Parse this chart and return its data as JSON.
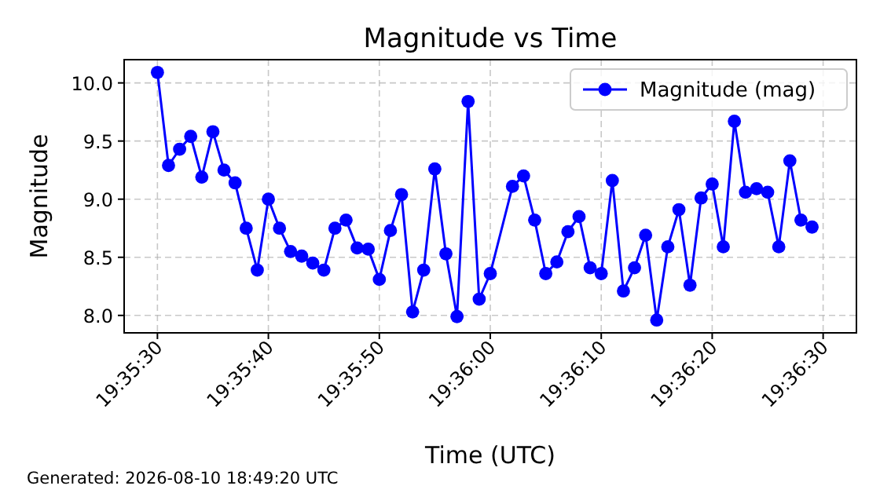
{
  "chart_data": {
    "type": "line",
    "title": "Magnitude vs Time",
    "xlabel": "Time (UTC)",
    "ylabel": "Magnitude",
    "annotations": [
      "Generated: 2026-08-10 18:49:20 UTC"
    ],
    "x": [
      "2026-08-10T19:35:30",
      "2026-08-10T19:35:31",
      "2026-08-10T19:35:32",
      "2026-08-10T19:35:33",
      "2026-08-10T19:35:34",
      "2026-08-10T19:35:35",
      "2026-08-10T19:35:36",
      "2026-08-10T19:35:37",
      "2026-08-10T19:35:38",
      "2026-08-10T19:35:39",
      "2026-08-10T19:35:40",
      "2026-08-10T19:35:41",
      "2026-08-10T19:35:42",
      "2026-08-10T19:35:43",
      "2026-08-10T19:35:44",
      "2026-08-10T19:35:45",
      "2026-08-10T19:35:46",
      "2026-08-10T19:35:47",
      "2026-08-10T19:35:48",
      "2026-08-10T19:35:49",
      "2026-08-10T19:35:50",
      "2026-08-10T19:35:51",
      "2026-08-10T19:35:52",
      "2026-08-10T19:35:53",
      "2026-08-10T19:35:54",
      "2026-08-10T19:35:55",
      "2026-08-10T19:35:56",
      "2026-08-10T19:35:57",
      "2026-08-10T19:35:58",
      "2026-08-10T19:35:59",
      "2026-08-10T19:36:00",
      "2026-08-10T19:36:02",
      "2026-08-10T19:36:03",
      "2026-08-10T19:36:04",
      "2026-08-10T19:36:05",
      "2026-08-10T19:36:06",
      "2026-08-10T19:36:07",
      "2026-08-10T19:36:08",
      "2026-08-10T19:36:09",
      "2026-08-10T19:36:10",
      "2026-08-10T19:36:11",
      "2026-08-10T19:36:12",
      "2026-08-10T19:36:13",
      "2026-08-10T19:36:14",
      "2026-08-10T19:36:15",
      "2026-08-10T19:36:16",
      "2026-08-10T19:36:17",
      "2026-08-10T19:36:18",
      "2026-08-10T19:36:19",
      "2026-08-10T19:36:20",
      "2026-08-10T19:36:21",
      "2026-08-10T19:36:22",
      "2026-08-10T19:36:23",
      "2026-08-10T19:36:24",
      "2026-08-10T19:36:25",
      "2026-08-10T19:36:26",
      "2026-08-10T19:36:27",
      "2026-08-10T19:36:28",
      "2026-08-10T19:36:29"
    ],
    "series": [
      {
        "name": "Magnitude (mag)",
        "color": "#0000ff",
        "values": [
          10.09,
          9.29,
          9.43,
          9.54,
          9.19,
          9.58,
          9.25,
          9.14,
          8.75,
          8.39,
          9.0,
          8.75,
          8.55,
          8.51,
          8.45,
          8.39,
          8.75,
          8.82,
          8.58,
          8.57,
          8.31,
          8.73,
          9.04,
          8.03,
          8.39,
          9.26,
          8.53,
          7.99,
          9.84,
          8.14,
          8.36,
          9.11,
          9.2,
          8.82,
          8.36,
          8.46,
          8.72,
          8.85,
          8.41,
          8.36,
          9.16,
          8.21,
          8.41,
          8.69,
          7.96,
          8.59,
          8.91,
          8.26,
          9.01,
          9.13,
          8.59,
          9.67,
          9.06,
          9.09,
          9.06,
          8.59,
          9.33,
          8.82,
          8.76
        ]
      }
    ],
    "xlim": [
      "2026-08-10T19:35:27",
      "2026-08-10T19:36:33"
    ],
    "xticks": [
      {
        "value": "2026-08-10T19:35:30",
        "label": "19:35:30"
      },
      {
        "value": "2026-08-10T19:35:40",
        "label": "19:35:40"
      },
      {
        "value": "2026-08-10T19:35:50",
        "label": "19:35:50"
      },
      {
        "value": "2026-08-10T19:36:00",
        "label": "19:36:00"
      },
      {
        "value": "2026-08-10T19:36:10",
        "label": "19:36:10"
      },
      {
        "value": "2026-08-10T19:36:20",
        "label": "19:36:20"
      },
      {
        "value": "2026-08-10T19:36:30",
        "label": "19:36:30"
      }
    ],
    "ylim": [
      7.85,
      10.2
    ],
    "yticks": [
      {
        "value": 8,
        "label": "8.0"
      },
      {
        "value": 8.5,
        "label": "8.5"
      },
      {
        "value": 9,
        "label": "9.0"
      },
      {
        "value": 9.5,
        "label": "9.5"
      },
      {
        "value": 10,
        "label": "10.0"
      }
    ],
    "grid": true,
    "legend": "top right",
    "marker": "circle",
    "line_style": "solid"
  }
}
